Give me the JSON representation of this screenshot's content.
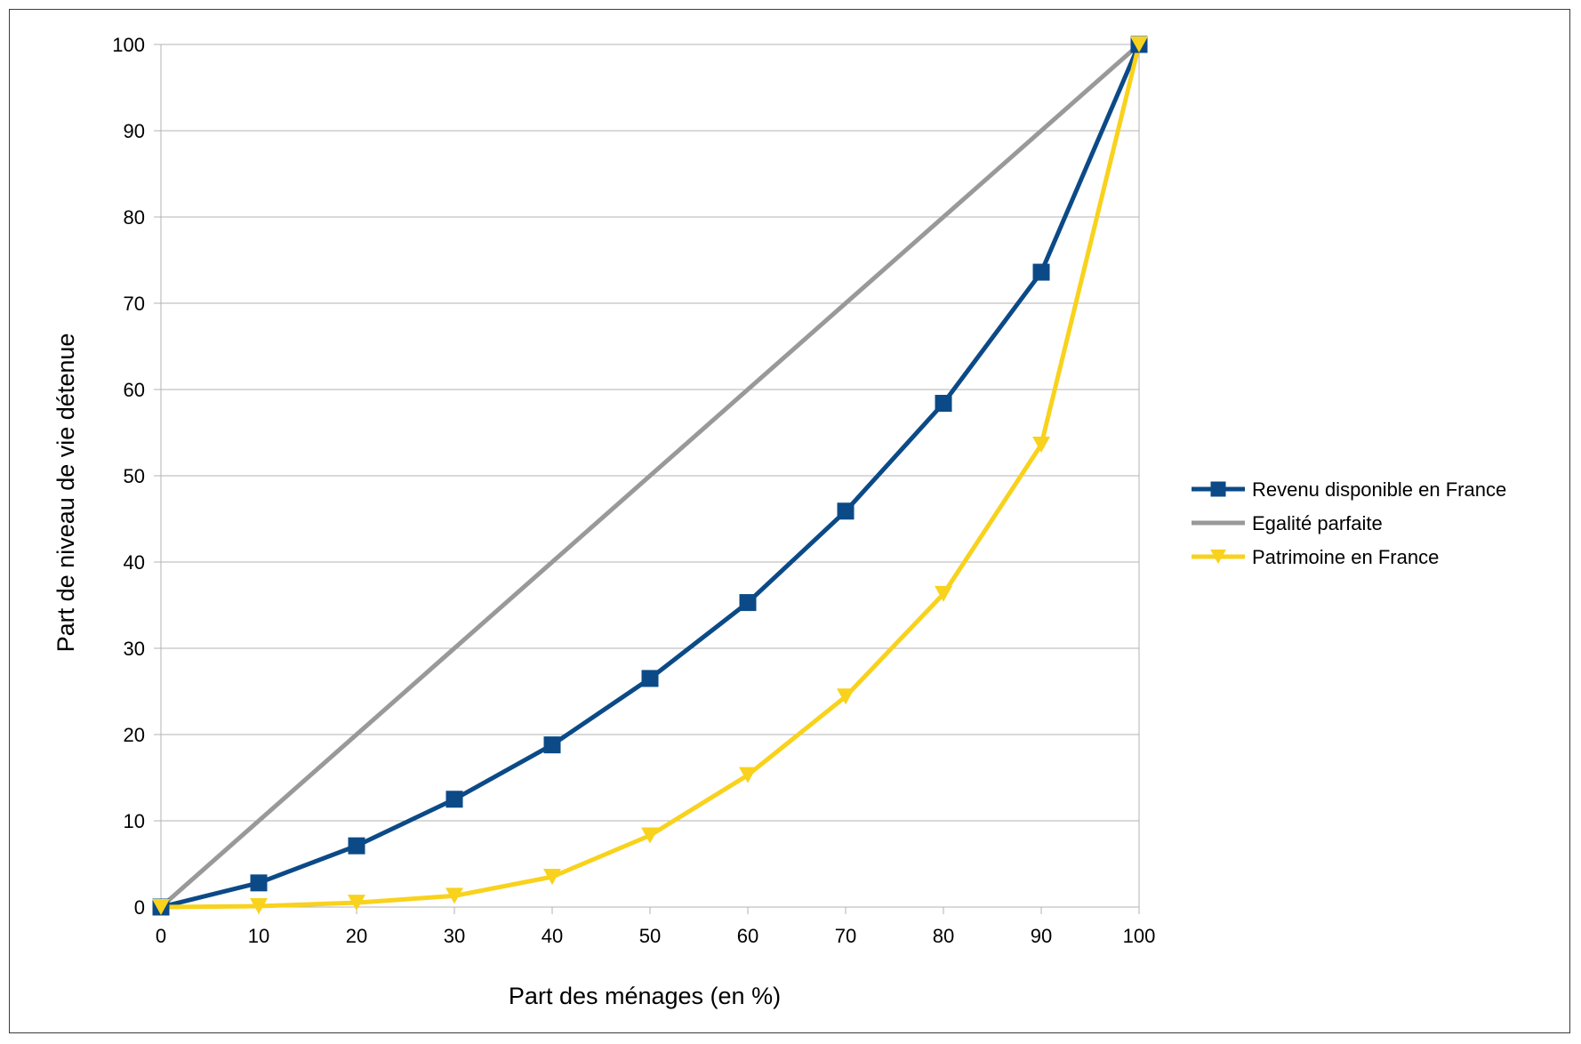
{
  "chart_data": {
    "type": "line",
    "title": "",
    "xlabel": "Part des ménages (en %)",
    "ylabel": "Part de niveau de vie détenue",
    "xlim": [
      0,
      100
    ],
    "ylim": [
      0,
      100
    ],
    "x_ticks": [
      0,
      10,
      20,
      30,
      40,
      50,
      60,
      70,
      80,
      90,
      100
    ],
    "y_ticks": [
      0,
      10,
      20,
      30,
      40,
      50,
      60,
      70,
      80,
      90,
      100
    ],
    "grid": "horizontal",
    "legend_position": "right",
    "x": [
      0,
      10,
      20,
      30,
      40,
      50,
      60,
      70,
      80,
      90,
      100
    ],
    "series": [
      {
        "name": "Revenu disponible en France",
        "color": "#0b4a87",
        "marker": "square",
        "values": [
          0,
          2.8,
          7.1,
          12.5,
          18.8,
          26.5,
          35.3,
          45.9,
          58.4,
          73.6,
          100
        ]
      },
      {
        "name": "Egalité parfaite",
        "color": "#999999",
        "marker": "none",
        "values": [
          0,
          10,
          20,
          30,
          40,
          50,
          60,
          70,
          80,
          90,
          100
        ]
      },
      {
        "name": "Patrimoine en France",
        "color": "#f8d21c",
        "marker": "triangle-down",
        "values": [
          0,
          0.1,
          0.5,
          1.3,
          3.5,
          8.3,
          15.3,
          24.4,
          36.3,
          53.6,
          100
        ]
      }
    ]
  }
}
